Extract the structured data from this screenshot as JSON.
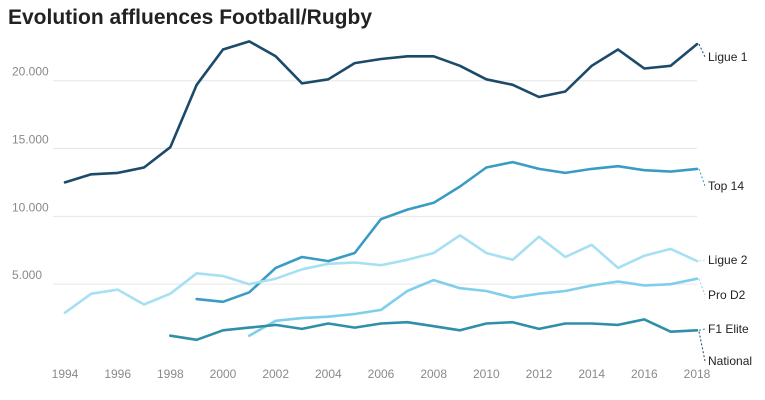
{
  "chart_data": {
    "type": "line",
    "title": "Evolution affluences Football/Rugby",
    "xlabel": "",
    "ylabel": "",
    "xlim": [
      1994,
      2018
    ],
    "ylim": [
      0,
      23000
    ],
    "grid": true,
    "x_ticks": [
      1994,
      1996,
      1998,
      2000,
      2002,
      2004,
      2006,
      2008,
      2010,
      2012,
      2014,
      2016,
      2018
    ],
    "x_tick_labels": [
      "1994",
      "1996",
      "1998",
      "2000",
      "2002",
      "2004",
      "2006",
      "2008",
      "2010",
      "2012",
      "2014",
      "2016",
      "2018"
    ],
    "y_ticks": [
      5000,
      10000,
      15000,
      20000
    ],
    "y_tick_labels": [
      "5.000",
      "10.000",
      "15.000",
      "20.000"
    ],
    "series": [
      {
        "name": "Ligue 1",
        "color": "#1b4a6b",
        "x": [
          1994,
          1995,
          1996,
          1997,
          1998,
          1999,
          2000,
          2001,
          2002,
          2003,
          2004,
          2005,
          2006,
          2007,
          2008,
          2009,
          2010,
          2011,
          2012,
          2013,
          2014,
          2015,
          2016,
          2017,
          2018
        ],
        "values": [
          12500,
          13100,
          13200,
          13600,
          15100,
          19700,
          22300,
          22900,
          21800,
          19800,
          20100,
          21300,
          21600,
          21800,
          21800,
          21100,
          20100,
          19700,
          18800,
          19200,
          21100,
          22300,
          20900,
          21100,
          22700
        ]
      },
      {
        "name": "Top 14",
        "color": "#3a9cc4",
        "x": [
          1999,
          2000,
          2001,
          2002,
          2003,
          2004,
          2005,
          2006,
          2007,
          2008,
          2009,
          2010,
          2011,
          2012,
          2013,
          2014,
          2015,
          2016,
          2017,
          2018
        ],
        "values": [
          3900,
          3700,
          4400,
          6200,
          7000,
          6700,
          7300,
          9800,
          10500,
          11000,
          12200,
          13600,
          14000,
          13500,
          13200,
          13500,
          13700,
          13400,
          13300,
          13500
        ]
      },
      {
        "name": "Ligue 2",
        "color": "#a7e0f2",
        "x": [
          1994,
          1995,
          1996,
          1997,
          1998,
          1999,
          2000,
          2001,
          2002,
          2003,
          2004,
          2005,
          2006,
          2007,
          2008,
          2009,
          2010,
          2011,
          2012,
          2013,
          2014,
          2015,
          2016,
          2017,
          2018
        ],
        "values": [
          2900,
          4300,
          4600,
          3500,
          4300,
          5800,
          5600,
          5000,
          5400,
          6100,
          6500,
          6600,
          6400,
          6800,
          7300,
          8600,
          7300,
          6800,
          8500,
          7000,
          7900,
          6200,
          7100,
          7600,
          6700
        ]
      },
      {
        "name": "Pro D2",
        "color": "#7fcfec",
        "x": [
          2001,
          2002,
          2003,
          2004,
          2005,
          2006,
          2007,
          2008,
          2009,
          2010,
          2011,
          2012,
          2013,
          2014,
          2015,
          2016,
          2017,
          2018
        ],
        "values": [
          1200,
          2300,
          2500,
          2600,
          2800,
          3100,
          4500,
          5300,
          4700,
          4500,
          4000,
          4300,
          4500,
          4900,
          5200,
          4900,
          5000,
          5400
        ]
      },
      {
        "name": "F1 Elite",
        "color": "#2f8fa8",
        "x": [
          1998,
          1999,
          2000,
          2001,
          2002,
          2003,
          2004,
          2005,
          2006,
          2007,
          2008,
          2009,
          2010,
          2011,
          2012,
          2013,
          2014,
          2015,
          2016,
          2017,
          2018
        ],
        "values": [
          1200,
          900,
          1600,
          1800,
          2000,
          1700,
          2100,
          1800,
          2100,
          2200,
          1900,
          1600,
          2100,
          2200,
          1700,
          2100,
          2100,
          2000,
          2400,
          1500,
          1600
        ]
      }
    ],
    "labels": [
      "Ligue 1",
      "Top 14",
      "Ligue 2",
      "Pro D2",
      "F1 Elite",
      "National"
    ]
  }
}
